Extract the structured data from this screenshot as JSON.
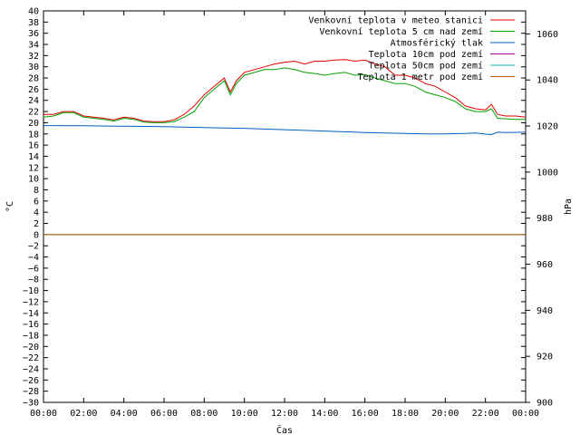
{
  "chart_data": {
    "type": "line",
    "title": "",
    "xlabel": "Čas",
    "ylabel_left": "°C",
    "ylabel_right": "hPa",
    "xlim": [
      0,
      24
    ],
    "ylim_left": [
      -30,
      40
    ],
    "ylim_right": [
      900,
      1070
    ],
    "x_ticks": [
      "00:00",
      "02:00",
      "04:00",
      "06:00",
      "08:00",
      "10:00",
      "12:00",
      "14:00",
      "16:00",
      "18:00",
      "20:00",
      "22:00",
      "00:00"
    ],
    "y_ticks_left": [
      40,
      38,
      36,
      34,
      32,
      30,
      28,
      26,
      24,
      22,
      20,
      18,
      16,
      14,
      12,
      10,
      8,
      6,
      4,
      2,
      0,
      -2,
      -4,
      -6,
      -8,
      -10,
      -12,
      -14,
      -16,
      -18,
      -20,
      -22,
      -24,
      -26,
      -28,
      -30
    ],
    "y_ticks_right": [
      1060,
      1040,
      1020,
      1000,
      980,
      960,
      940,
      920,
      900
    ],
    "grid": false,
    "legend_position": "top-right",
    "series": [
      {
        "name": "Venkovní teplota v meteo stanici",
        "axis": "left",
        "color": "#e00000",
        "x": [
          0,
          0.5,
          1,
          1.5,
          2,
          2.5,
          3,
          3.5,
          4,
          4.5,
          5,
          5.5,
          6,
          6.5,
          7,
          7.5,
          8,
          8.5,
          9,
          9.3,
          9.6,
          10,
          10.5,
          11,
          11.5,
          12,
          12.5,
          13,
          13.5,
          14,
          14.5,
          15,
          15.5,
          16,
          16.5,
          17,
          17.5,
          18,
          18.5,
          19,
          19.5,
          20,
          20.5,
          21,
          21.5,
          22,
          22.3,
          22.6,
          23,
          23.5,
          24
        ],
        "y": [
          21.5,
          21.5,
          22,
          22,
          21.2,
          21,
          20.8,
          20.5,
          21,
          20.8,
          20.3,
          20.2,
          20.2,
          20.5,
          21.5,
          23,
          25,
          26.5,
          28,
          25.5,
          27.5,
          29,
          29.5,
          30,
          30.5,
          30.8,
          31,
          30.5,
          31,
          31,
          31.2,
          31.3,
          31,
          31.2,
          30.5,
          30,
          28.5,
          28.5,
          28,
          27,
          26.5,
          25.5,
          24.5,
          23,
          22.5,
          22.3,
          23.3,
          21.5,
          21.2,
          21.2,
          21
        ]
      },
      {
        "name": "Venkovní teplota 5 cm nad zemí",
        "axis": "left",
        "color": "#00a000",
        "x": [
          0,
          0.5,
          1,
          1.5,
          2,
          2.5,
          3,
          3.5,
          4,
          4.5,
          5,
          5.5,
          6,
          6.5,
          7,
          7.5,
          8,
          8.5,
          9,
          9.3,
          9.6,
          10,
          10.5,
          11,
          11.5,
          12,
          12.5,
          13,
          13.5,
          14,
          14.5,
          15,
          15.5,
          16,
          16.5,
          17,
          17.5,
          18,
          18.5,
          19,
          19.5,
          20,
          20.5,
          21,
          21.5,
          22,
          22.3,
          22.6,
          23,
          23.5,
          24
        ],
        "y": [
          21,
          21.2,
          21.8,
          21.8,
          21,
          20.8,
          20.6,
          20.3,
          20.8,
          20.6,
          20.1,
          20,
          20,
          20.2,
          21,
          22,
          24.5,
          26,
          27.5,
          25,
          27,
          28.5,
          29,
          29.5,
          29.5,
          29.8,
          29.5,
          29,
          28.8,
          28.5,
          28.8,
          29,
          28.5,
          28.6,
          28,
          27.5,
          27,
          27,
          26.5,
          25.5,
          25,
          24.5,
          23.8,
          22.5,
          22,
          22,
          22.5,
          20.8,
          20.7,
          20.6,
          20.6
        ]
      },
      {
        "name": "Atmosférický tlak",
        "axis": "right",
        "color": "#0060c0",
        "x": [
          0,
          2,
          4,
          6,
          8,
          10,
          12,
          14,
          16,
          18,
          19,
          20,
          21,
          21.5,
          22,
          22.3,
          22.6,
          23,
          24
        ],
        "y": [
          1020.2,
          1020.1,
          1019.9,
          1019.7,
          1019.3,
          1019,
          1018.4,
          1017.8,
          1017.2,
          1016.8,
          1016.6,
          1016.6,
          1016.8,
          1017,
          1016.5,
          1016.3,
          1017.3,
          1017.2,
          1017.3
        ]
      },
      {
        "name": "Teplota 10cm pod zemí",
        "axis": "left",
        "color": "#a000a0",
        "x": [
          0,
          24
        ],
        "y": [
          0,
          0
        ]
      },
      {
        "name": "Teplota 50cm pod zemí",
        "axis": "left",
        "color": "#00c0c0",
        "x": [
          0,
          24
        ],
        "y": [
          0,
          0
        ]
      },
      {
        "name": "Teplota 1 metr pod zemí",
        "axis": "left",
        "color": "#c06000",
        "x": [
          0,
          24
        ],
        "y": [
          0,
          0
        ]
      }
    ]
  }
}
